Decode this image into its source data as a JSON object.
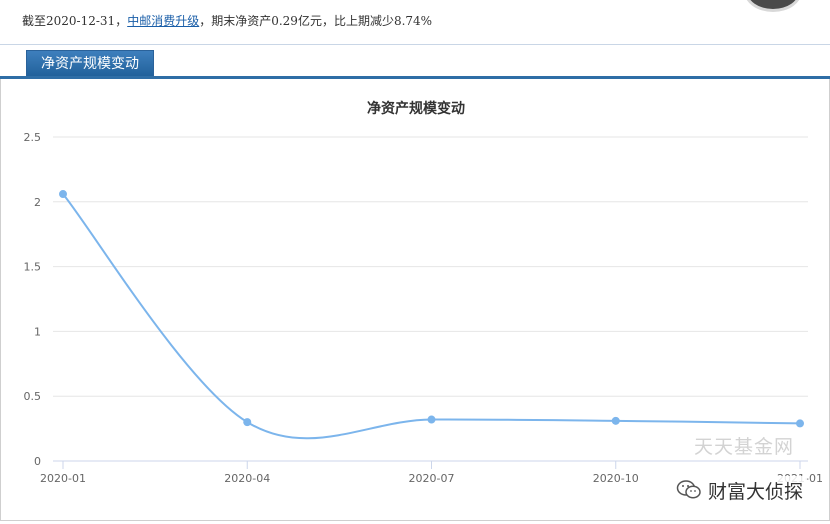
{
  "note": {
    "prefix": "截至2020-12-31，",
    "fund_link": "中邮消费升级",
    "suffix": "，期末净资产0.29亿元，比上期减少8.74%"
  },
  "tab": {
    "label": "净资产规模变动"
  },
  "watermark": {
    "site": "天天基金网",
    "account": "财富大侦探",
    "icon": "wechat-icon"
  },
  "chart_data": {
    "type": "line",
    "title": "净资产规模变动",
    "xlabel": "",
    "ylabel": "",
    "categories": [
      "2020-01",
      "2020-04",
      "2020-07",
      "2020-10",
      "2021-01"
    ],
    "x_tick_labels": [
      "2020-01",
      "2020-04",
      "2020-07",
      "2020-10",
      "2021-01"
    ],
    "values": [
      2.06,
      0.3,
      0.32,
      0.31,
      0.29
    ],
    "y_ticks": [
      "0",
      "0.5",
      "1",
      "1.5",
      "2",
      "2.5"
    ],
    "ylim": [
      0,
      2.5
    ],
    "grid": true,
    "line_color": "#7cb5ec",
    "grid_color": "#e6e6e6"
  }
}
